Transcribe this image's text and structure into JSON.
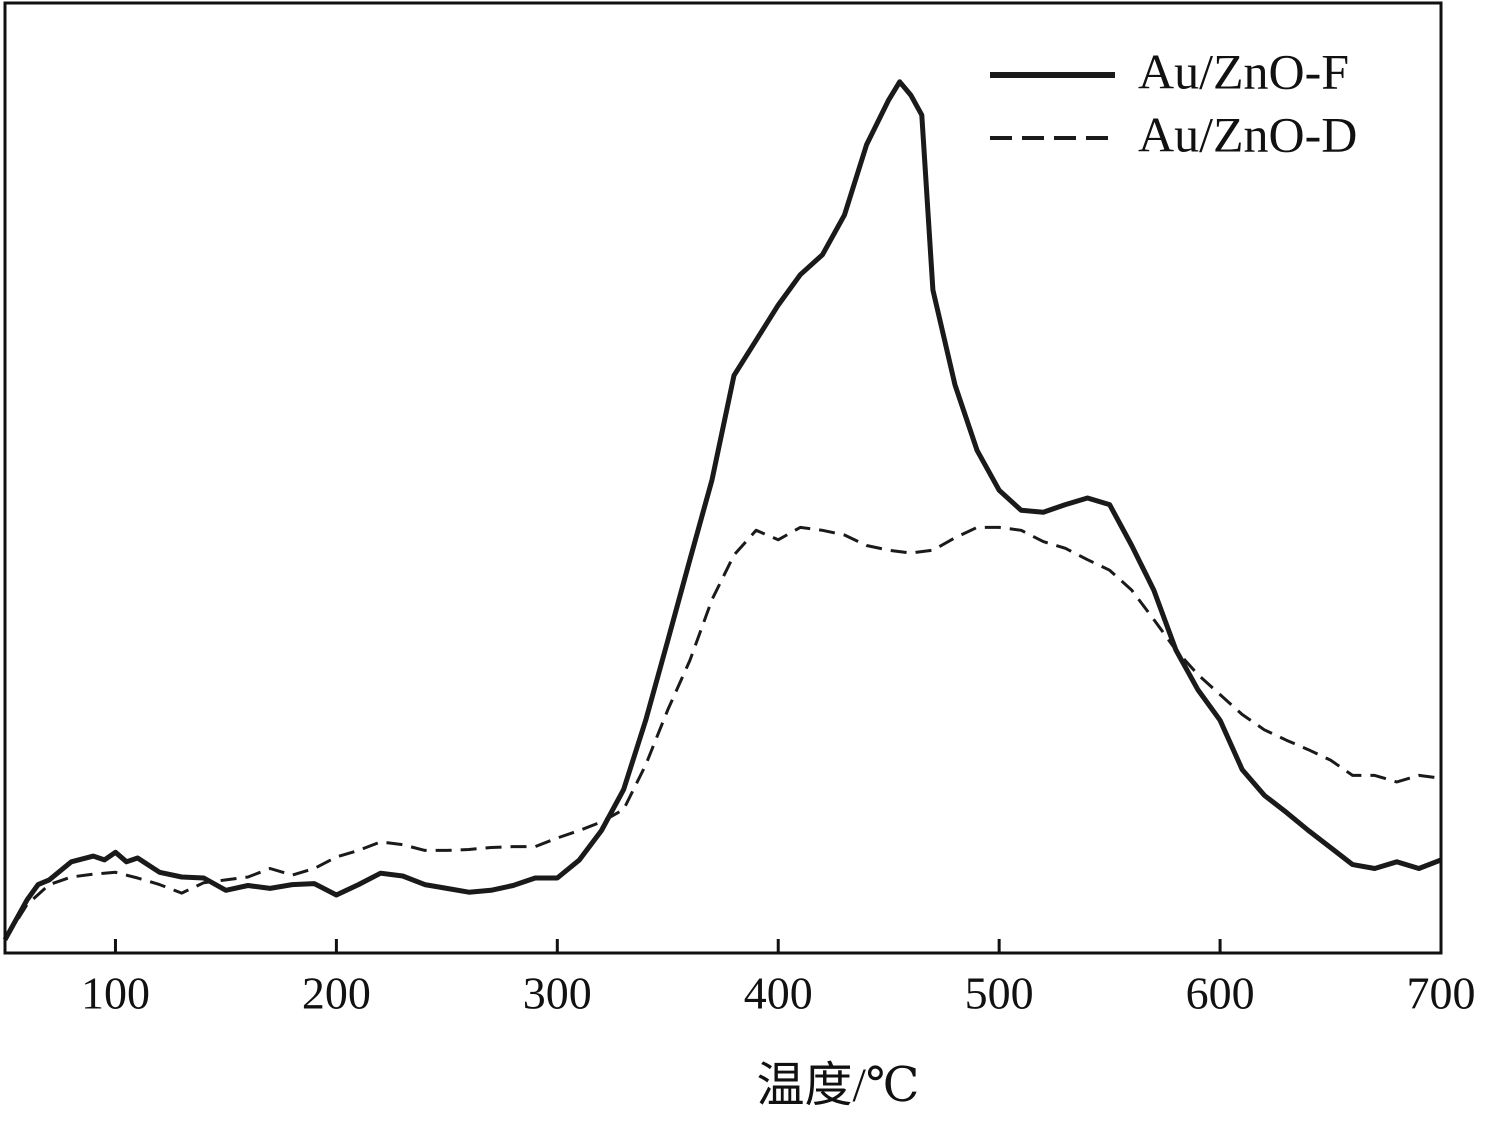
{
  "chart_data": {
    "type": "line",
    "xlabel": "温度/℃",
    "xlim": [
      50,
      700
    ],
    "xticks": [
      100,
      200,
      300,
      400,
      500,
      600,
      700
    ],
    "ylim": [
      0,
      100
    ],
    "legend": "upper right",
    "grid": false,
    "series": [
      {
        "name": "Au/ZnO-F",
        "color": "#1a1a1a",
        "style": "solid",
        "x": [
          50,
          55,
          60,
          65,
          70,
          80,
          90,
          95,
          100,
          105,
          110,
          120,
          130,
          140,
          150,
          160,
          170,
          180,
          190,
          200,
          210,
          220,
          230,
          240,
          250,
          260,
          270,
          280,
          290,
          300,
          310,
          320,
          330,
          340,
          350,
          360,
          370,
          380,
          390,
          400,
          410,
          420,
          430,
          440,
          450,
          455,
          460,
          465,
          470,
          480,
          490,
          500,
          510,
          520,
          530,
          540,
          550,
          560,
          570,
          580,
          590,
          600,
          610,
          620,
          630,
          640,
          650,
          660,
          670,
          680,
          690,
          700
        ],
        "values": [
          1.4,
          3.5,
          5.6,
          7.2,
          7.7,
          9.6,
          10.2,
          9.8,
          10.6,
          9.6,
          10.0,
          8.5,
          8.0,
          7.9,
          6.6,
          7.1,
          6.8,
          7.2,
          7.3,
          6.1,
          7.2,
          8.4,
          8.1,
          7.2,
          6.8,
          6.4,
          6.6,
          7.1,
          7.9,
          7.9,
          9.8,
          12.9,
          17.2,
          24.5,
          32.9,
          41.4,
          49.8,
          60.8,
          64.5,
          68.2,
          71.4,
          73.5,
          77.7,
          85.1,
          89.8,
          91.7,
          90.3,
          88.2,
          69.8,
          59.8,
          52.9,
          48.7,
          46.6,
          46.4,
          47.2,
          47.9,
          47.2,
          42.9,
          38.2,
          31.9,
          27.7,
          24.5,
          19.3,
          16.6,
          14.8,
          12.9,
          11.1,
          9.3,
          8.9,
          9.6,
          8.9,
          9.8
        ]
      },
      {
        "name": "Au/ZnO-D",
        "color": "#1a1a1a",
        "style": "dashed",
        "x": [
          50,
          60,
          70,
          80,
          90,
          100,
          110,
          120,
          130,
          140,
          150,
          160,
          170,
          180,
          190,
          200,
          210,
          220,
          230,
          240,
          250,
          260,
          270,
          280,
          290,
          300,
          310,
          320,
          330,
          340,
          350,
          360,
          370,
          380,
          390,
          400,
          410,
          420,
          430,
          440,
          450,
          460,
          470,
          480,
          490,
          500,
          510,
          520,
          530,
          540,
          550,
          560,
          570,
          580,
          590,
          600,
          610,
          620,
          630,
          640,
          650,
          660,
          670,
          680,
          690,
          700
        ],
        "values": [
          1.4,
          5.1,
          7.2,
          8.0,
          8.3,
          8.5,
          7.9,
          7.2,
          6.3,
          7.4,
          7.7,
          8.0,
          8.9,
          8.2,
          8.9,
          10.1,
          10.8,
          11.7,
          11.4,
          10.8,
          10.8,
          10.9,
          11.1,
          11.2,
          11.2,
          12.1,
          12.9,
          13.8,
          15.1,
          19.8,
          25.6,
          30.8,
          37.2,
          41.9,
          44.5,
          43.5,
          44.8,
          44.5,
          44.0,
          42.9,
          42.4,
          42.1,
          42.4,
          43.7,
          44.8,
          44.8,
          44.5,
          43.3,
          42.6,
          41.4,
          40.3,
          38.2,
          35.1,
          31.9,
          29.3,
          27.2,
          25.1,
          23.5,
          22.4,
          21.4,
          20.3,
          18.7,
          18.7,
          18.0,
          18.7,
          18.4
        ]
      }
    ]
  }
}
